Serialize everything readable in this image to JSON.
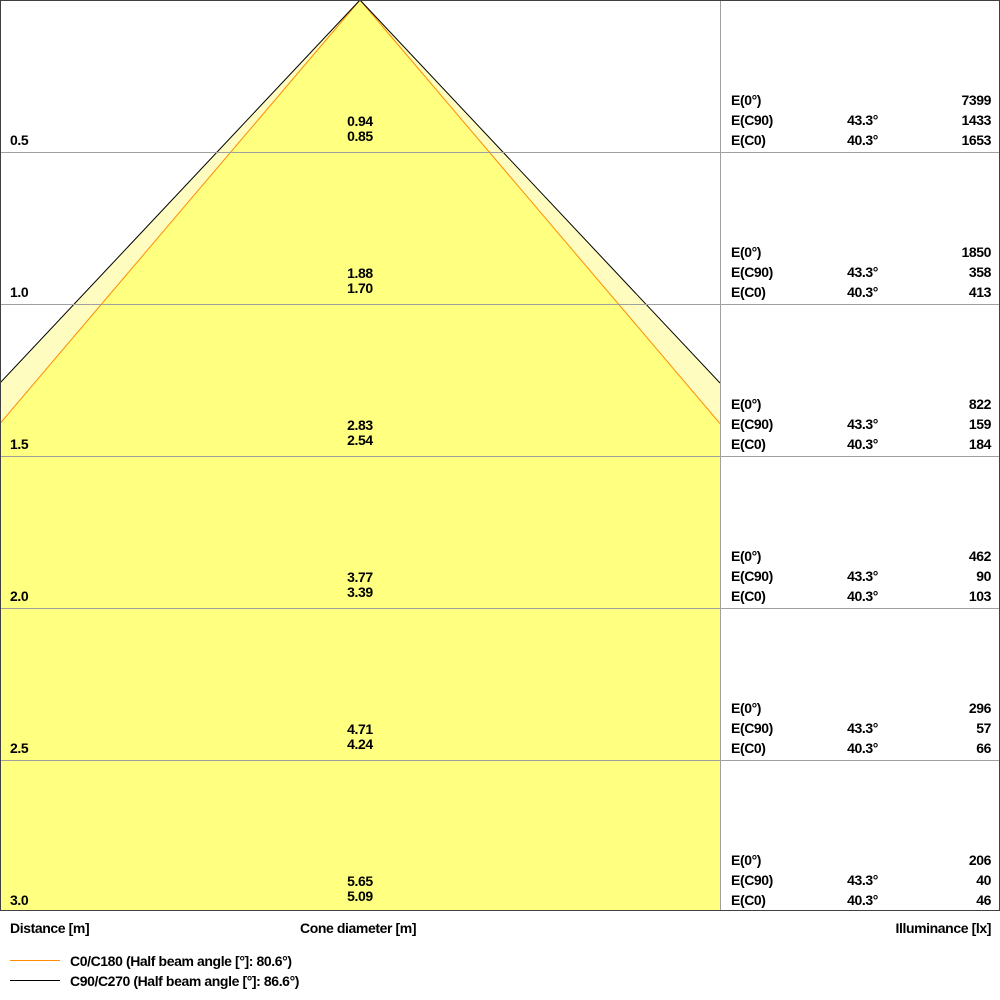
{
  "chart_data": {
    "type": "cone-diagram",
    "xlabel": "Cone diameter [m]",
    "ylabel": "Distance [m]",
    "right_label": "Illuminance [lx]",
    "colors": {
      "fill": "#ffff80",
      "fill_outer": "#fffcc0",
      "c0_line": "#ff8c00",
      "c90_line": "#000000",
      "grid": "#a0a0a0"
    },
    "legend": [
      {
        "name": "C0/C180 (Half beam angle [°]: 80.6°)",
        "color": "#ff8c00"
      },
      {
        "name": "C90/C270 (Half beam angle [°]: 86.6°)",
        "color": "#000000"
      }
    ],
    "labels": {
      "e0": "E(0°)",
      "ec90": "E(C90)",
      "ec0": "E(C0)"
    },
    "rows": [
      {
        "distance": "0.5",
        "diameter_c90": "0.94",
        "diameter_c0": "0.85",
        "e0": "7399",
        "ec90_angle": "43.3°",
        "ec90": "1433",
        "ec0_angle": "40.3°",
        "ec0": "1653"
      },
      {
        "distance": "1.0",
        "diameter_c90": "1.88",
        "diameter_c0": "1.70",
        "e0": "1850",
        "ec90_angle": "43.3°",
        "ec90": "358",
        "ec0_angle": "40.3°",
        "ec0": "413"
      },
      {
        "distance": "1.5",
        "diameter_c90": "2.83",
        "diameter_c0": "2.54",
        "e0": "822",
        "ec90_angle": "43.3°",
        "ec90": "159",
        "ec0_angle": "40.3°",
        "ec0": "184"
      },
      {
        "distance": "2.0",
        "diameter_c90": "3.77",
        "diameter_c0": "3.39",
        "e0": "462",
        "ec90_angle": "43.3°",
        "ec90": "90",
        "ec0_angle": "40.3°",
        "ec0": "103"
      },
      {
        "distance": "2.5",
        "diameter_c90": "4.71",
        "diameter_c0": "4.24",
        "e0": "296",
        "ec90_angle": "43.3°",
        "ec90": "57",
        "ec0_angle": "40.3°",
        "ec0": "66"
      },
      {
        "distance": "3.0",
        "diameter_c90": "5.65",
        "diameter_c0": "5.09",
        "e0": "206",
        "ec90_angle": "43.3°",
        "ec90": "40",
        "ec0_angle": "40.3°",
        "ec0": "46"
      }
    ]
  }
}
